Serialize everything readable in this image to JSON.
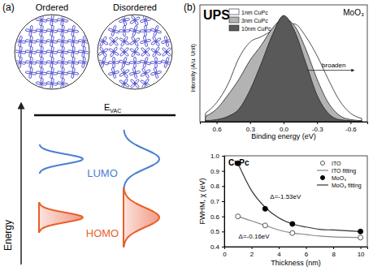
{
  "panel_labels": [
    "(a)",
    "(b)"
  ],
  "diagram": {
    "circles": [
      {
        "label": "Ordered"
      },
      {
        "label": "Disordered"
      }
    ],
    "vacuum_level": {
      "symbol": "E",
      "subscript": "VAC"
    },
    "lumo": "LUMO",
    "homo": "HOMO",
    "energy_axis": "Energy"
  },
  "chart_data": [
    {
      "type": "area",
      "title": "UPS",
      "x_label": "Binding energy (eV)",
      "y_label": "Intensity (A/u. Unit)",
      "annotations": [
        "MoO₃",
        "broaden"
      ],
      "x": [
        0.7,
        0.6,
        0.5,
        0.4,
        0.3,
        0.2,
        0.1,
        0.0,
        -0.1,
        -0.2,
        -0.3,
        -0.4,
        -0.5,
        -0.6,
        -0.7
      ],
      "series": [
        {
          "name": "1nm CuPc",
          "color": "#ffffff",
          "values": [
            0.08,
            0.18,
            0.35,
            0.6,
            0.75,
            0.8,
            0.86,
            0.93,
            0.92,
            0.8,
            0.62,
            0.4,
            0.2,
            0.08,
            0.03
          ]
        },
        {
          "name": "3nm CuPc",
          "color": "#b3b3b3",
          "values": [
            0.05,
            0.12,
            0.25,
            0.4,
            0.58,
            0.72,
            0.88,
            0.97,
            0.9,
            0.68,
            0.4,
            0.18,
            0.06,
            0.02,
            0.01
          ]
        },
        {
          "name": "10nm CuPc",
          "color": "#595959",
          "values": [
            0.01,
            0.02,
            0.05,
            0.12,
            0.3,
            0.55,
            0.82,
            1.0,
            0.85,
            0.55,
            0.25,
            0.08,
            0.02,
            0.01,
            0.0
          ]
        }
      ],
      "xlim": [
        0.75,
        -0.75
      ],
      "ylim": [
        0,
        1.1
      ],
      "xticks": [
        0.6,
        0.3,
        {
          "value": 0,
          "label": "0.0"
        },
        -0.3,
        -0.6
      ],
      "tick_labels": "x",
      "legend": "upper left"
    },
    {
      "type": "line",
      "title": "CuPc",
      "x_label": "Thickness (nm)",
      "y_label": "FWHM, χ (eV)",
      "annotations": [
        "Δ=-1.53eV",
        "Δ=-0.16eV"
      ],
      "series": [
        {
          "name": "ITO",
          "type": "scatter",
          "marker": "open-circle",
          "color": "#555555",
          "x": [
            1,
            3,
            5,
            10
          ],
          "values": [
            0.6,
            0.54,
            0.49,
            0.46
          ]
        },
        {
          "name": "ITO fitting",
          "type": "line",
          "line_style": "solid",
          "color": "#888888",
          "x": [
            1,
            2,
            3,
            4,
            5,
            6,
            7,
            8,
            9,
            10
          ],
          "values": [
            0.6,
            0.57,
            0.54,
            0.51,
            0.49,
            0.48,
            0.47,
            0.465,
            0.462,
            0.46
          ]
        },
        {
          "name": "MoO₃",
          "type": "scatter",
          "marker": "filled-circle",
          "color": "#000000",
          "x": [
            1,
            3,
            5,
            10
          ],
          "values": [
            0.95,
            0.65,
            0.55,
            0.5
          ]
        },
        {
          "name": "MoO₃ fitting",
          "type": "line",
          "line_style": "solid",
          "color": "#333333",
          "x": [
            1,
            2,
            3,
            4,
            5,
            6,
            7,
            8,
            9,
            10
          ],
          "values": [
            0.95,
            0.77,
            0.66,
            0.59,
            0.55,
            0.53,
            0.515,
            0.51,
            0.505,
            0.5
          ]
        }
      ],
      "xlim": [
        0,
        10.5
      ],
      "ylim": [
        0.4,
        1.0
      ],
      "xticks": [
        0,
        2,
        4,
        6,
        8,
        10
      ],
      "yticks": [
        0.4,
        0.5,
        0.6,
        0.7,
        0.8,
        0.9,
        {
          "value": 1,
          "label": "1.0"
        }
      ],
      "legend": "upper right"
    }
  ]
}
